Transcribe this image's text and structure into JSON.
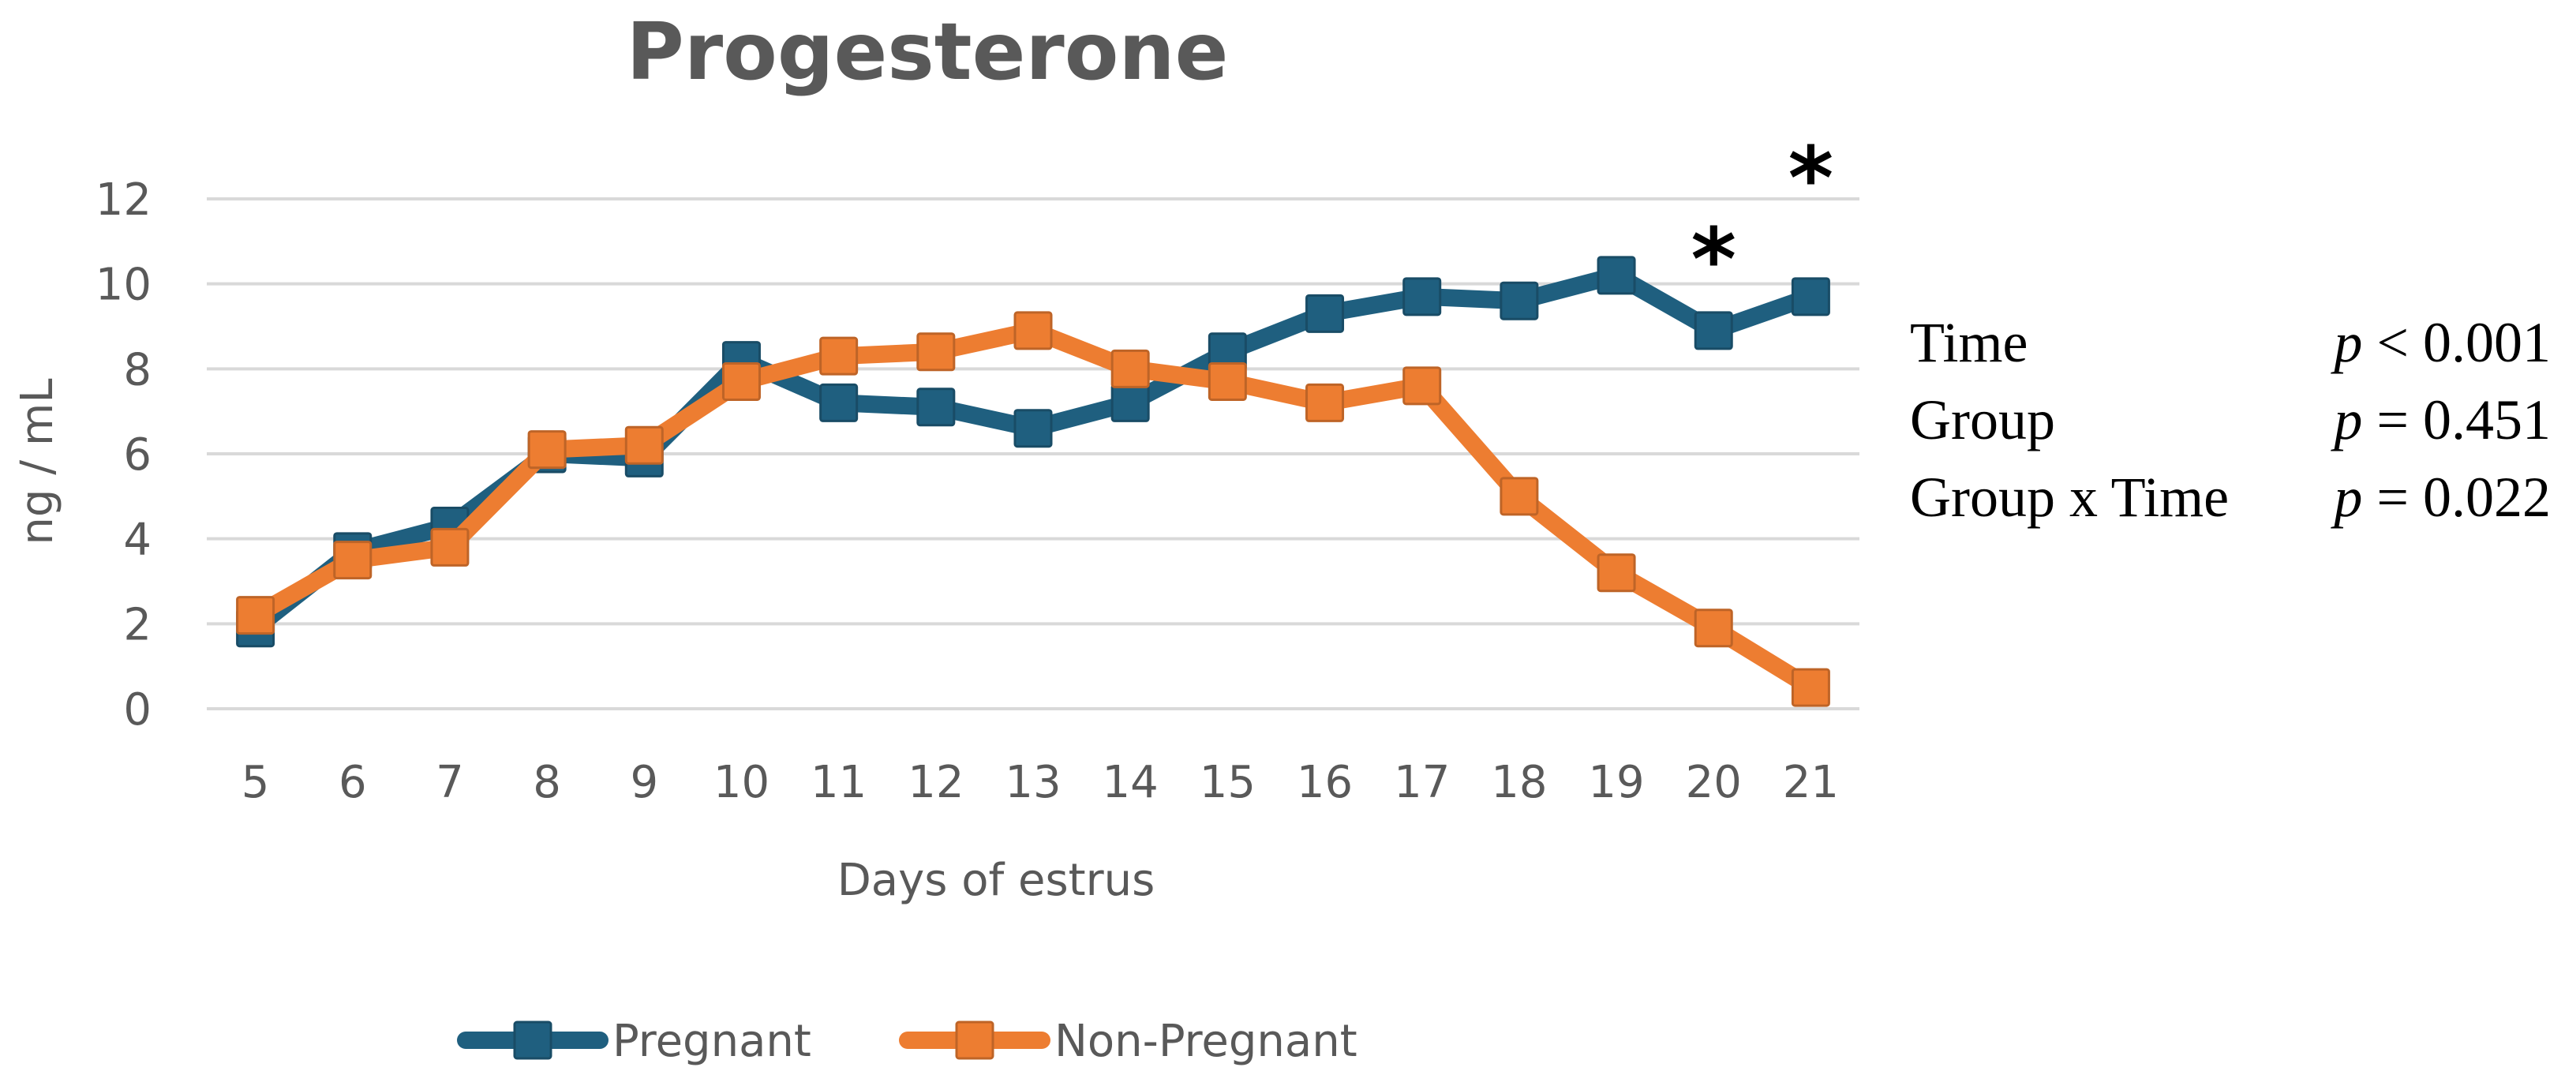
{
  "chart_data": {
    "type": "line",
    "title": "Progesterone",
    "xlabel": "Days of estrus",
    "ylabel": "ng / mL",
    "ylim": [
      0,
      12
    ],
    "yticks": [
      0,
      2,
      4,
      6,
      8,
      10,
      12
    ],
    "grid": true,
    "legend": "bottom",
    "categories": [
      "5",
      "6",
      "7",
      "8",
      "9",
      "10",
      "11",
      "12",
      "13",
      "14",
      "15",
      "16",
      "17",
      "18",
      "19",
      "20",
      "21"
    ],
    "series": [
      {
        "name": "Pregnant",
        "color": "#1f5f7f",
        "values": [
          1.9,
          3.7,
          4.3,
          6.0,
          5.9,
          8.2,
          7.2,
          7.1,
          6.6,
          7.2,
          8.4,
          9.3,
          9.7,
          9.6,
          10.2,
          8.9,
          9.7
        ]
      },
      {
        "name": "Non-Pregnant",
        "color": "#ed7d31",
        "values": [
          2.2,
          3.5,
          3.8,
          6.1,
          6.2,
          7.7,
          8.3,
          8.4,
          8.9,
          8.0,
          7.7,
          7.2,
          7.6,
          5.0,
          3.2,
          1.9,
          0.5
        ]
      }
    ],
    "annotations": [
      {
        "text": "*",
        "category": "20"
      },
      {
        "text": "*",
        "category": "21"
      }
    ],
    "stats": [
      {
        "label": "Time",
        "p": "p",
        "rest": " < 0.001"
      },
      {
        "label": "Group",
        "p": "p",
        "rest": " = 0.451"
      },
      {
        "label": "Group x Time",
        "p": "p",
        "rest": " = 0.022"
      }
    ]
  }
}
